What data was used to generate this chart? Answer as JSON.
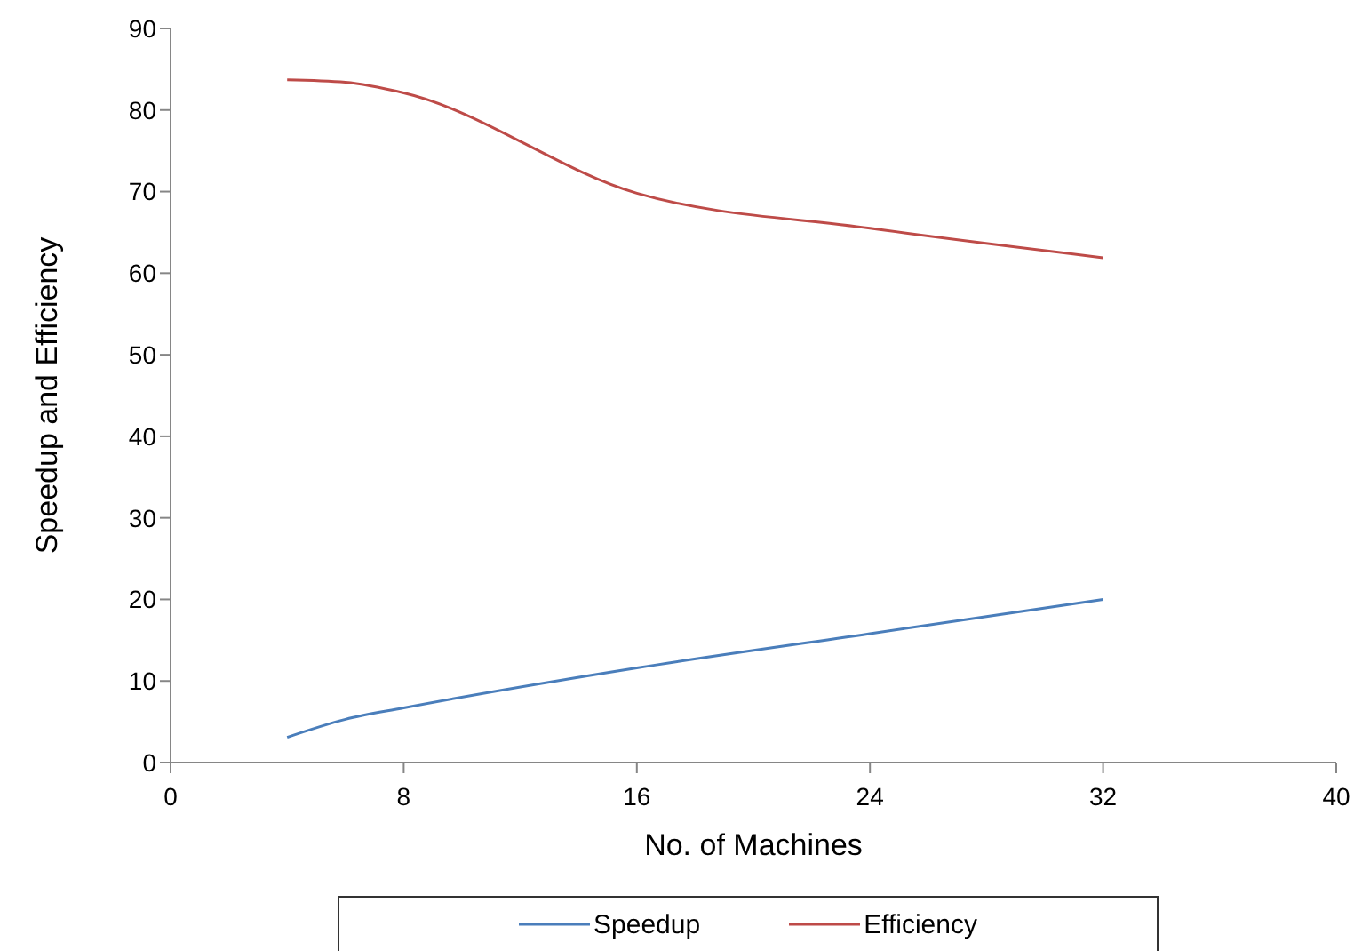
{
  "chart_data": {
    "type": "line",
    "xlabel": "No. of Machines",
    "ylabel": "Speedup and Efficiency",
    "x": [
      4,
      6,
      8,
      16,
      24,
      32
    ],
    "series": [
      {
        "name": "Speedup",
        "color": "#4a7ebb",
        "values": [
          3.1,
          5.3,
          6.7,
          11.6,
          15.8,
          20
        ]
      },
      {
        "name": "Efficiency",
        "color": "#be4b48",
        "values": [
          83.7,
          83.4,
          82.1,
          69.8,
          65.5,
          61.9
        ]
      }
    ],
    "xlim": [
      0,
      40
    ],
    "xticks": [
      0,
      8,
      16,
      24,
      32,
      40
    ],
    "ylim": [
      0,
      90
    ],
    "yticks": [
      0,
      10,
      20,
      30,
      40,
      50,
      60,
      70,
      80,
      90
    ],
    "grid": false,
    "legend": "bottom",
    "marker": "none"
  }
}
